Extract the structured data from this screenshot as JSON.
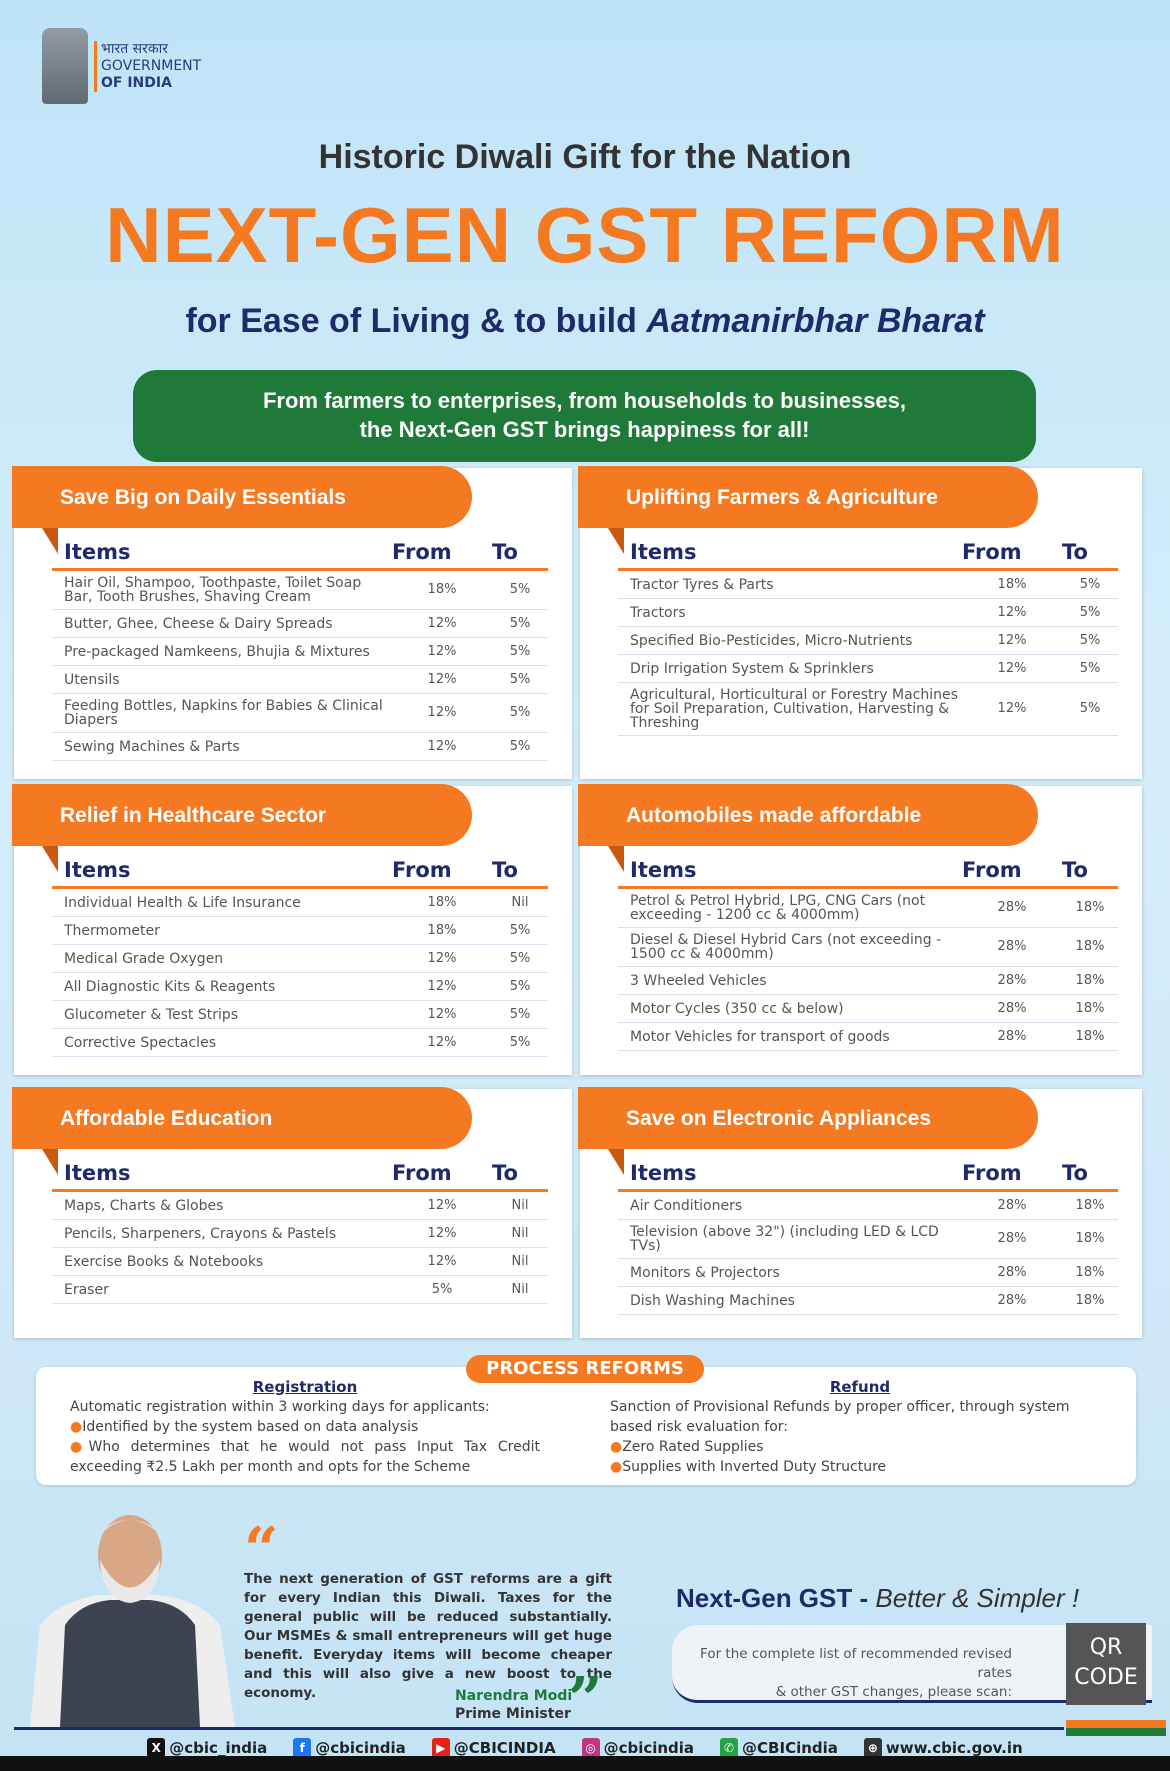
{
  "logo": {
    "hindi": "भारत सरकार",
    "line1": "GOVERNMENT",
    "line2": "OF INDIA"
  },
  "title": "Historic Diwali Gift for the Nation",
  "headline": "NEXT-GEN GST REFORM",
  "subtitle_plain": "for Ease of Living & to build ",
  "subtitle_italic": "Aatmanirbhar Bharat",
  "banner": {
    "line1": "From farmers to enterprises, from households to businesses,",
    "line2": "the Next-Gen GST brings happiness for all!"
  },
  "headers": {
    "items": "Items",
    "from": "From",
    "to": "To"
  },
  "sections": [
    {
      "title": "Save Big on Daily Essentials",
      "rows": [
        [
          "Hair Oil, Shampoo, Toothpaste, Toilet Soap Bar, Tooth Brushes, Shaving Cream",
          "18%",
          "5%"
        ],
        [
          "Butter, Ghee, Cheese & Dairy Spreads",
          "12%",
          "5%"
        ],
        [
          "Pre-packaged Namkeens, Bhujia & Mixtures",
          "12%",
          "5%"
        ],
        [
          "Utensils",
          "12%",
          "5%"
        ],
        [
          "Feeding Bottles, Napkins for Babies & Clinical Diapers",
          "12%",
          "5%"
        ],
        [
          "Sewing Machines & Parts",
          "12%",
          "5%"
        ]
      ]
    },
    {
      "title": "Uplifting Farmers & Agriculture",
      "rows": [
        [
          "Tractor Tyres & Parts",
          "18%",
          "5%"
        ],
        [
          "Tractors",
          "12%",
          "5%"
        ],
        [
          "Specified Bio-Pesticides, Micro-Nutrients",
          "12%",
          "5%"
        ],
        [
          "Drip Irrigation System & Sprinklers",
          "12%",
          "5%"
        ],
        [
          "Agricultural, Horticultural or Forestry Machines for Soil Preparation, Cultivation, Harvesting & Threshing",
          "12%",
          "5%"
        ]
      ]
    },
    {
      "title": "Relief in Healthcare Sector",
      "rows": [
        [
          "Individual Health & Life Insurance",
          "18%",
          "Nil"
        ],
        [
          "Thermometer",
          "18%",
          "5%"
        ],
        [
          "Medical Grade Oxygen",
          "12%",
          "5%"
        ],
        [
          "All Diagnostic Kits & Reagents",
          "12%",
          "5%"
        ],
        [
          "Glucometer & Test Strips",
          "12%",
          "5%"
        ],
        [
          "Corrective Spectacles",
          "12%",
          "5%"
        ]
      ]
    },
    {
      "title": "Automobiles made affordable",
      "rows": [
        [
          "Petrol & Petrol Hybrid, LPG, CNG Cars (not exceeding - 1200 cc & 4000mm)",
          "28%",
          "18%"
        ],
        [
          "Diesel & Diesel Hybrid Cars (not exceeding - 1500 cc & 4000mm)",
          "28%",
          "18%"
        ],
        [
          "3 Wheeled Vehicles",
          "28%",
          "18%"
        ],
        [
          "Motor Cycles (350 cc & below)",
          "28%",
          "18%"
        ],
        [
          "Motor Vehicles for transport of goods",
          "28%",
          "18%"
        ]
      ]
    },
    {
      "title": "Affordable Education",
      "rows": [
        [
          "Maps, Charts & Globes",
          "12%",
          "Nil"
        ],
        [
          "Pencils, Sharpeners, Crayons & Pastels",
          "12%",
          "Nil"
        ],
        [
          "Exercise Books & Notebooks",
          "12%",
          "Nil"
        ],
        [
          "Eraser",
          "5%",
          "Nil"
        ]
      ]
    },
    {
      "title": "Save on Electronic Appliances",
      "rows": [
        [
          "Air Conditioners",
          "28%",
          "18%"
        ],
        [
          "Television (above 32\") (including LED & LCD TVs)",
          "28%",
          "18%"
        ],
        [
          "Monitors & Projectors",
          "28%",
          "18%"
        ],
        [
          "Dish Washing Machines",
          "28%",
          "18%"
        ]
      ]
    }
  ],
  "process": {
    "tag": "PROCESS REFORMS",
    "registration": {
      "title": "Registration",
      "intro": "Automatic registration within 3 working days for applicants:",
      "bullets": [
        "Identified by the system based on data analysis",
        "Who determines that he would not pass Input Tax Credit exceeding ₹2.5 Lakh per month and opts for the Scheme"
      ]
    },
    "refund": {
      "title": "Refund",
      "intro": "Sanction of Provisional Refunds by proper officer, through system based risk evaluation for:",
      "bullets": [
        "Zero Rated Supplies",
        "Supplies with Inverted Duty Structure"
      ]
    }
  },
  "quote": {
    "text": "The next generation of GST reforms are a gift for every Indian this Diwali. Taxes for the general public will be reduced substantially. Our MSMEs & small entrepreneurs will get huge benefit. Everyday items will become cheaper and this will also give a new boost to the economy.",
    "name": "Narendra Modi",
    "role": "Prime Minister"
  },
  "tagline": {
    "bold": "Next-Gen GST - ",
    "italic": "Better & Simpler !"
  },
  "qr": {
    "text1": "For the complete list of recommended revised rates",
    "text2": "& other GST changes, please scan:",
    "label1": "QR",
    "label2": "CODE"
  },
  "social": [
    {
      "icon": "x-icon",
      "handle": "@cbic_india",
      "color": "#111"
    },
    {
      "icon": "facebook-icon",
      "handle": "@cbicindia",
      "color": "#1877f2"
    },
    {
      "icon": "youtube-icon",
      "handle": "@CBICINDIA",
      "color": "#e62117"
    },
    {
      "icon": "instagram-icon",
      "handle": "@cbicindia",
      "color": "#c13584"
    },
    {
      "icon": "whatsapp-icon",
      "handle": "@CBICindia",
      "color": "#25a244"
    },
    {
      "icon": "globe-icon",
      "handle": "www.cbic.gov.in",
      "color": "#333"
    }
  ],
  "colors": {
    "orange": "#f47920",
    "green": "#1f7a3a",
    "navy": "#1f2a6b"
  }
}
